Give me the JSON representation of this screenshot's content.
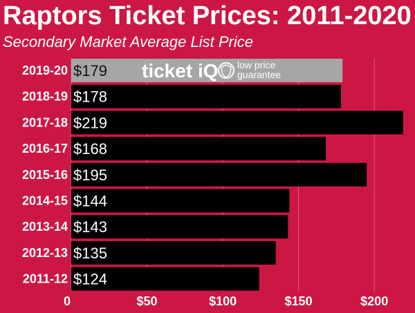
{
  "chart_data": {
    "type": "bar",
    "orientation": "horizontal",
    "title": "Raptors Ticket Prices: 2011-2020",
    "subtitle": "Secondary Market Average List Price",
    "categories": [
      "2019-20",
      "2018-19",
      "2017-18",
      "2016-17",
      "2015-16",
      "2014-15",
      "2013-14",
      "2012-13",
      "2011-12"
    ],
    "values": [
      179,
      178,
      219,
      168,
      195,
      144,
      143,
      135,
      124
    ],
    "value_labels": [
      "$179",
      "$178",
      "$219",
      "$168",
      "$195",
      "$144",
      "$143",
      "$135",
      "$124"
    ],
    "highlight_index": 0,
    "xlim": [
      0,
      220
    ],
    "xticks": [
      0,
      50,
      100,
      150,
      200
    ],
    "xtick_labels": [
      "0",
      "$50",
      "$100",
      "$150",
      "$200"
    ],
    "xlabel": "",
    "ylabel": "",
    "grid": true,
    "colors": {
      "background": "#cc1745",
      "bar": "#000000",
      "highlight_bar": "#a6a6a6",
      "gridline": "#e0607f",
      "text": "#ffffff",
      "highlight_text": "#111111"
    }
  },
  "watermark": {
    "brand_prefix": "ticket",
    "brand_suffix": "iQ",
    "tagline_line1": "low price",
    "tagline_line2": "guarantee"
  }
}
